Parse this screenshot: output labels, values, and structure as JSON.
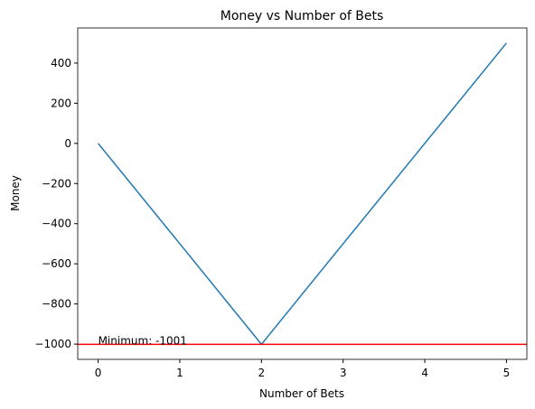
{
  "chart_data": {
    "type": "line",
    "title": "Money vs Number of Bets",
    "x_label": "Number of Bets",
    "y_label": "Money",
    "x": [
      0,
      1,
      2,
      3,
      4,
      5
    ],
    "series": [
      {
        "name": "Money",
        "color": "#1f77b4",
        "values": [
          0,
          -500,
          -1001,
          -500,
          0,
          500
        ]
      }
    ],
    "hline": {
      "value": -1001,
      "color": "#ff0000"
    },
    "annotation": {
      "text": "Minimum: -1001",
      "x": 0,
      "y": -1001
    },
    "xlim": [
      -0.25,
      5.25
    ],
    "xticks": [
      0,
      1,
      2,
      3,
      4,
      5
    ],
    "ylim": [
      -1076,
      575
    ],
    "yticks": [
      {
        "value": -1000,
        "label": "−1000"
      },
      {
        "value": -800,
        "label": "−800"
      },
      {
        "value": -600,
        "label": "−600"
      },
      {
        "value": -400,
        "label": "−400"
      },
      {
        "value": -200,
        "label": "−200"
      },
      0,
      200,
      400
    ],
    "grid": false
  }
}
